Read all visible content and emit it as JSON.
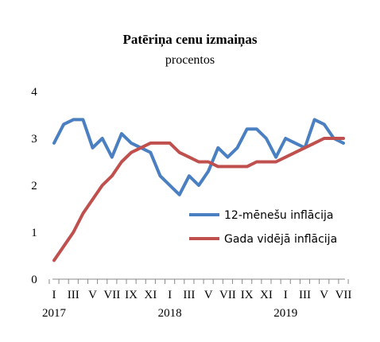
{
  "chart_data": {
    "type": "line",
    "title": "Patēriņa cenu izmaiņas",
    "subtitle": "procentos",
    "ylim": [
      0,
      4
    ],
    "yticks": [
      0,
      1,
      2,
      3,
      4
    ],
    "grid": false,
    "legend_position": "bottom-right",
    "x": [
      "2017-01",
      "2017-02",
      "2017-03",
      "2017-04",
      "2017-05",
      "2017-06",
      "2017-07",
      "2017-08",
      "2017-09",
      "2017-10",
      "2017-11",
      "2017-12",
      "2018-01",
      "2018-02",
      "2018-03",
      "2018-04",
      "2018-05",
      "2018-06",
      "2018-07",
      "2018-08",
      "2018-09",
      "2018-10",
      "2018-11",
      "2018-12",
      "2019-01",
      "2019-02",
      "2019-03",
      "2019-04",
      "2019-05",
      "2019-06",
      "2019-07"
    ],
    "xtick_labels": [
      "I",
      "III",
      "V",
      "VII",
      "IX",
      "XI",
      "I",
      "III",
      "V",
      "VII",
      "IX",
      "XI",
      "I",
      "III",
      "V",
      "VII"
    ],
    "year_labels": [
      "2017",
      "2018",
      "2019"
    ],
    "series": [
      {
        "name": "12-mēnešu inflācija",
        "color": "#4a7fc1",
        "values": [
          2.9,
          3.3,
          3.4,
          3.4,
          2.8,
          3.0,
          2.6,
          3.1,
          2.9,
          2.8,
          2.7,
          2.2,
          2.0,
          1.8,
          2.2,
          2.0,
          2.3,
          2.8,
          2.6,
          2.8,
          3.2,
          3.2,
          3.0,
          2.6,
          3.0,
          2.9,
          2.8,
          3.4,
          3.3,
          3.0,
          2.9
        ]
      },
      {
        "name": "Gada vidējā inflācija",
        "color": "#c0504d",
        "values": [
          0.4,
          0.7,
          1.0,
          1.4,
          1.7,
          2.0,
          2.2,
          2.5,
          2.7,
          2.8,
          2.9,
          2.9,
          2.9,
          2.7,
          2.6,
          2.5,
          2.5,
          2.4,
          2.4,
          2.4,
          2.4,
          2.5,
          2.5,
          2.5,
          2.6,
          2.7,
          2.8,
          2.9,
          3.0,
          3.0,
          3.0
        ]
      }
    ]
  }
}
